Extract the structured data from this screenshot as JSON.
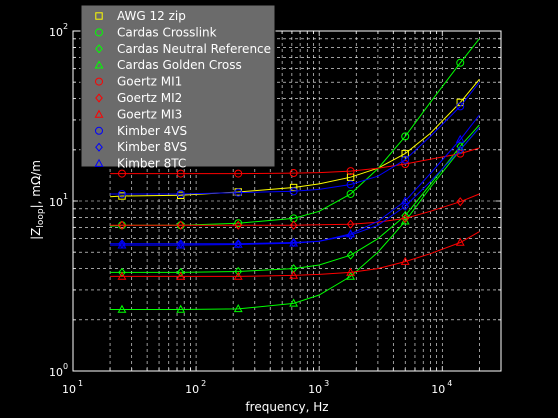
{
  "chart_data": {
    "type": "line",
    "title": "",
    "xlabel": "frequency, Hz",
    "ylabel_main": "|Z",
    "ylabel_sub": "loop",
    "ylabel_rest": "|, mΩ/m",
    "x_scale": "log",
    "y_scale": "log",
    "xlim": [
      10,
      30000
    ],
    "ylim": [
      1,
      100
    ],
    "grid": true,
    "legend_position": "top-left",
    "x_ticks": [
      {
        "value": 10,
        "base": "10",
        "exp": "1"
      },
      {
        "value": 100,
        "base": "10",
        "exp": "2"
      },
      {
        "value": 1000,
        "base": "10",
        "exp": "3"
      },
      {
        "value": 10000,
        "base": "10",
        "exp": "4"
      }
    ],
    "y_ticks": [
      {
        "value": 1,
        "base": "10",
        "exp": "0"
      },
      {
        "value": 10,
        "base": "10",
        "exp": "1"
      },
      {
        "value": 100,
        "base": "10",
        "exp": "2"
      }
    ],
    "marker_x": [
      25,
      75,
      220,
      620,
      1800,
      5000,
      14000
    ],
    "series": [
      {
        "name": "AWG 12 zip",
        "color": "#ffff00",
        "marker": "square",
        "x": [
          20,
          25,
          75,
          220,
          620,
          1000,
          1800,
          3000,
          5000,
          8000,
          14000,
          20000
        ],
        "y": [
          10.6,
          10.7,
          10.8,
          11.3,
          12.0,
          12.6,
          13.8,
          15.6,
          19.0,
          25.0,
          38.0,
          52.0
        ]
      },
      {
        "name": "Cardas Crosslink",
        "color": "#00ff00",
        "marker": "circle",
        "x": [
          20,
          25,
          75,
          220,
          620,
          1000,
          1800,
          3000,
          5000,
          8000,
          14000,
          20000
        ],
        "y": [
          7.1,
          7.2,
          7.2,
          7.4,
          7.9,
          8.7,
          11.0,
          15.5,
          24.0,
          38.0,
          65.0,
          90.0
        ]
      },
      {
        "name": "Cardas Neutral Reference",
        "color": "#00ff00",
        "marker": "diamond",
        "x": [
          20,
          25,
          75,
          220,
          620,
          1000,
          1800,
          3000,
          5000,
          8000,
          14000,
          20000
        ],
        "y": [
          3.8,
          3.8,
          3.8,
          3.85,
          4.0,
          4.2,
          4.8,
          6.0,
          8.2,
          12.5,
          21.0,
          28.0
        ]
      },
      {
        "name": "Cardas Golden Cross",
        "color": "#00ff00",
        "marker": "triangle",
        "x": [
          20,
          25,
          75,
          220,
          620,
          1000,
          1800,
          3000,
          5000,
          8000,
          14000,
          20000
        ],
        "y": [
          2.3,
          2.3,
          2.3,
          2.32,
          2.5,
          2.8,
          3.6,
          5.0,
          7.6,
          12.0,
          20.0,
          27.0
        ]
      },
      {
        "name": "Goertz MI1",
        "color": "#ff0000",
        "marker": "circle",
        "x": [
          20,
          25,
          75,
          220,
          620,
          1000,
          1800,
          3000,
          5000,
          8000,
          14000,
          20000
        ],
        "y": [
          14.5,
          14.5,
          14.5,
          14.5,
          14.6,
          14.7,
          15.0,
          15.6,
          16.5,
          17.6,
          19.0,
          20.5
        ]
      },
      {
        "name": "Goertz MI2",
        "color": "#ff0000",
        "marker": "diamond",
        "x": [
          20,
          25,
          75,
          220,
          620,
          1000,
          1800,
          3000,
          5000,
          8000,
          14000,
          20000
        ],
        "y": [
          7.2,
          7.2,
          7.2,
          7.2,
          7.2,
          7.25,
          7.3,
          7.5,
          7.9,
          8.7,
          9.9,
          11.0
        ]
      },
      {
        "name": "Goertz MI3",
        "color": "#ff0000",
        "marker": "triangle",
        "x": [
          20,
          25,
          75,
          220,
          620,
          1000,
          1800,
          3000,
          5000,
          8000,
          14000,
          20000
        ],
        "y": [
          3.6,
          3.6,
          3.6,
          3.6,
          3.65,
          3.7,
          3.8,
          4.0,
          4.4,
          4.9,
          5.7,
          6.6
        ]
      },
      {
        "name": "Kimber 4VS",
        "color": "#0000ff",
        "marker": "circle",
        "x": [
          20,
          25,
          75,
          220,
          620,
          1000,
          1800,
          3000,
          5000,
          8000,
          14000,
          20000
        ],
        "y": [
          11.0,
          11.0,
          11.0,
          11.2,
          11.4,
          11.7,
          12.5,
          14.0,
          17.5,
          24.0,
          36.0,
          50.0
        ]
      },
      {
        "name": "Kimber 8VS",
        "color": "#0000ff",
        "marker": "diamond",
        "x": [
          20,
          25,
          75,
          220,
          620,
          1000,
          1800,
          3000,
          5000,
          8000,
          14000,
          20000
        ],
        "y": [
          5.6,
          5.6,
          5.6,
          5.6,
          5.7,
          5.8,
          6.3,
          7.2,
          9.3,
          13.0,
          20.0,
          27.0
        ]
      },
      {
        "name": "Kimber 8TC",
        "color": "#0000ff",
        "marker": "triangle",
        "x": [
          20,
          25,
          75,
          220,
          620,
          1000,
          1800,
          3000,
          5000,
          8000,
          14000,
          20000
        ],
        "y": [
          5.5,
          5.5,
          5.5,
          5.55,
          5.65,
          5.8,
          6.4,
          7.6,
          10.0,
          14.5,
          23.0,
          32.0
        ]
      }
    ]
  }
}
